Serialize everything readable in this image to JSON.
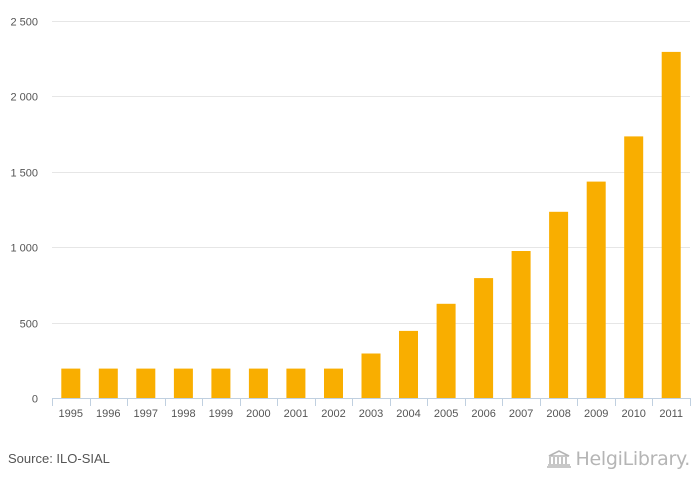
{
  "chart_data": {
    "type": "bar",
    "title": "",
    "xlabel": "",
    "ylabel": "",
    "categories": [
      "1995",
      "1996",
      "1997",
      "1998",
      "1999",
      "2000",
      "2001",
      "2002",
      "2003",
      "2004",
      "2005",
      "2006",
      "2007",
      "2008",
      "2009",
      "2010",
      "2011"
    ],
    "values": [
      195,
      195,
      195,
      195,
      195,
      195,
      195,
      195,
      295,
      445,
      625,
      795,
      975,
      1235,
      1435,
      1735,
      2295
    ],
    "ylim": [
      0,
      2500
    ],
    "yticks": [
      0,
      500,
      1000,
      1500,
      2000,
      2500
    ],
    "ytick_labels": [
      "0",
      "500",
      "1 000",
      "1 500",
      "2 000",
      "2 500"
    ],
    "bar_color": "#f9ae00",
    "grid": true
  },
  "footer": {
    "source": "Source: ILO-SIAL",
    "logo_text": "HelgiLibrary."
  }
}
